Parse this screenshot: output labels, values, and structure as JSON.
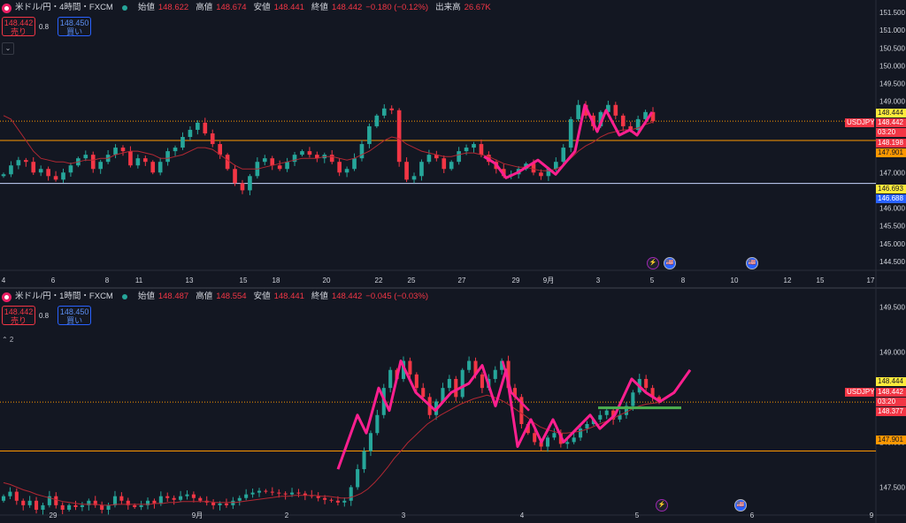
{
  "colors": {
    "background": "#131722",
    "up": "#26a69a",
    "down": "#f23645",
    "drawing": "#ff1f8f",
    "support_green": "#4caf50",
    "hline_orange": "#ff9800",
    "hline_blue": "#c8d7ff"
  },
  "chart_data": [
    {
      "type": "candlestick",
      "symbol_line": "米ドル/円・4時間・FXCM",
      "ohlc": {
        "open_label": "始値",
        "open": "148.622",
        "high_label": "高値",
        "high": "148.674",
        "low_label": "安値",
        "low": "148.441",
        "close_label": "終値",
        "close": "148.442",
        "change": "−0.180 (−0.12%)",
        "volume_label": "出来高",
        "volume": "26.67K"
      },
      "sell": {
        "price": "148.442",
        "label": "売り"
      },
      "buy": {
        "price": "148.450",
        "label": "買い"
      },
      "spread": "0.8",
      "y_ticks": [
        "151.500",
        "151.000",
        "150.500",
        "150.000",
        "149.500",
        "149.000",
        "147.500",
        "147.000",
        "146.500",
        "146.000",
        "145.500",
        "145.000",
        "144.500"
      ],
      "x_ticks": [
        "4",
        "6",
        "8",
        "11",
        "13",
        "15",
        "18",
        "20",
        "22",
        "25",
        "27",
        "29",
        "9月",
        "3",
        "5",
        "8",
        "10",
        "12",
        "15",
        "17"
      ],
      "ylim": [
        144.4,
        151.65
      ],
      "hlines": [
        148.444,
        147.901,
        146.693
      ],
      "price_tags": [
        {
          "text": "148.444",
          "kind": "yellow"
        },
        {
          "text": "USDJPY",
          "kind": "red-left"
        },
        {
          "text": "148.442",
          "kind": "red"
        },
        {
          "text": "03:20",
          "kind": "red"
        },
        {
          "text": "148.198",
          "kind": "red"
        },
        {
          "text": "147.901",
          "kind": "orange"
        },
        {
          "text": "146.693",
          "kind": "yellow"
        },
        {
          "text": "146.688",
          "kind": "blue"
        }
      ],
      "close_series": [
        146.95,
        147.2,
        147.35,
        147.3,
        147.0,
        147.1,
        146.9,
        146.8,
        147.0,
        147.2,
        147.4,
        147.5,
        147.1,
        147.3,
        147.5,
        147.7,
        147.6,
        147.2,
        147.4,
        147.3,
        147.0,
        147.3,
        147.6,
        147.7,
        148.0,
        148.2,
        148.4,
        148.1,
        147.8,
        147.5,
        147.1,
        146.7,
        146.5,
        146.9,
        147.3,
        147.4,
        147.2,
        147.1,
        147.3,
        147.5,
        147.6,
        147.5,
        147.4,
        147.5,
        147.3,
        147.0,
        147.1,
        147.4,
        147.8,
        148.3,
        148.6,
        148.8,
        148.75,
        147.3,
        146.8,
        146.9,
        147.3,
        147.5,
        147.4,
        147.1,
        147.3,
        147.6,
        147.7,
        147.8,
        147.5,
        147.3,
        147.1,
        146.9,
        146.95,
        147.1,
        147.25,
        147.0,
        146.9,
        147.1,
        147.3,
        147.7,
        148.5,
        148.9,
        148.6,
        148.3,
        148.7,
        148.9,
        148.6,
        148.3,
        148.2,
        148.5,
        148.7,
        148.442
      ],
      "ma_series": [
        148.6,
        148.5,
        148.2,
        147.9,
        147.6,
        147.4,
        147.35,
        147.3,
        147.3,
        147.25,
        147.3,
        147.35,
        147.35,
        147.4,
        147.4,
        147.5,
        147.55,
        147.6,
        147.6,
        147.55,
        147.5,
        147.4,
        147.4,
        147.45,
        147.5,
        147.6,
        147.7,
        147.7,
        147.65,
        147.5,
        147.35,
        147.2,
        147.1,
        147.1,
        147.1,
        147.15,
        147.2,
        147.25,
        147.3,
        147.35,
        147.4,
        147.4,
        147.4,
        147.45,
        147.45,
        147.4,
        147.35,
        147.4,
        147.5,
        147.6,
        147.75,
        147.9,
        148.0,
        147.95,
        147.8,
        147.7,
        147.6,
        147.55,
        147.5,
        147.45,
        147.45,
        147.5,
        147.55,
        147.55,
        147.5,
        147.45,
        147.35,
        147.25,
        147.2,
        147.15,
        147.15,
        147.1,
        147.05,
        147.05,
        147.1,
        147.2,
        147.4,
        147.6,
        147.75,
        147.85,
        148.0,
        148.1,
        148.15,
        148.2,
        148.2,
        148.25,
        148.35,
        148.42
      ]
    },
    {
      "type": "candlestick",
      "symbol_line": "米ドル/円・1時間・FXCM",
      "ohlc": {
        "open_label": "始値",
        "open": "148.487",
        "high_label": "高値",
        "high": "148.554",
        "low_label": "安値",
        "low": "148.441",
        "close_label": "終値",
        "close": "148.442",
        "change": "−0.045 (−0.03%)"
      },
      "sell": {
        "price": "148.442",
        "label": "売り"
      },
      "buy": {
        "price": "148.450",
        "label": "買い"
      },
      "spread": "0.8",
      "y_ticks": [
        "149.500",
        "149.000",
        "148.000",
        "147.500"
      ],
      "x_ticks": [
        "29",
        "9月",
        "2",
        "3",
        "4",
        "5",
        "6",
        "9"
      ],
      "ylim": [
        147.25,
        149.62
      ],
      "hlines": [
        148.444,
        147.901
      ],
      "price_tags": [
        {
          "text": "148.444",
          "kind": "yellow"
        },
        {
          "text": "USDJPY",
          "kind": "red-left"
        },
        {
          "text": "148.442",
          "kind": "red"
        },
        {
          "text": "03:20",
          "kind": "red"
        },
        {
          "text": "148.377",
          "kind": "red"
        },
        {
          "text": "147.901",
          "kind": "orange"
        }
      ],
      "close_series": [
        147.4,
        147.45,
        147.35,
        147.3,
        147.35,
        147.25,
        147.3,
        147.4,
        147.3,
        147.25,
        147.3,
        147.28,
        147.3,
        147.35,
        147.3,
        147.25,
        147.3,
        147.4,
        147.35,
        147.3,
        147.28,
        147.3,
        147.35,
        147.32,
        147.4,
        147.38,
        147.36,
        147.4,
        147.42,
        147.38,
        147.35,
        147.33,
        147.3,
        147.32,
        147.3,
        147.35,
        147.38,
        147.42,
        147.44,
        147.46,
        147.45,
        147.44,
        147.43,
        147.42,
        147.44,
        147.43,
        147.41,
        147.4,
        147.38,
        147.36,
        147.35,
        147.33,
        147.35,
        147.5,
        147.7,
        147.9,
        148.1,
        148.3,
        148.6,
        148.8,
        148.7,
        148.9,
        148.75,
        148.6,
        148.5,
        148.3,
        148.45,
        148.6,
        148.7,
        148.5,
        148.8,
        148.9,
        148.75,
        148.6,
        148.7,
        148.8,
        148.9,
        148.6,
        148.5,
        148.2,
        148.1,
        148.0,
        147.95,
        148.05,
        148.1,
        147.98,
        148.0,
        148.05,
        148.15,
        148.2,
        148.25,
        148.3,
        148.35,
        148.25,
        148.3,
        148.4,
        148.55,
        148.7,
        148.6,
        148.5,
        148.442
      ],
      "ma_series": [
        147.55,
        147.53,
        147.5,
        147.47,
        147.45,
        147.42,
        147.4,
        147.38,
        147.36,
        147.34,
        147.33,
        147.32,
        147.31,
        147.31,
        147.31,
        147.3,
        147.3,
        147.31,
        147.31,
        147.31,
        147.31,
        147.31,
        147.31,
        147.32,
        147.32,
        147.33,
        147.33,
        147.34,
        147.34,
        147.34,
        147.34,
        147.34,
        147.33,
        147.33,
        147.33,
        147.33,
        147.34,
        147.35,
        147.36,
        147.37,
        147.38,
        147.39,
        147.4,
        147.4,
        147.41,
        147.41,
        147.41,
        147.41,
        147.4,
        147.4,
        147.39,
        147.38,
        147.38,
        147.4,
        147.43,
        147.48,
        147.55,
        147.63,
        147.72,
        147.82,
        147.9,
        147.99,
        148.06,
        148.13,
        148.2,
        148.25,
        148.3,
        148.34,
        148.38,
        148.42,
        148.45,
        148.48,
        148.5,
        148.52,
        148.5,
        148.47,
        148.43,
        148.38,
        148.33,
        148.28,
        148.22,
        148.17,
        148.14,
        148.12,
        148.1,
        148.1,
        148.11,
        148.12,
        148.14,
        148.17,
        148.2,
        148.23,
        148.26,
        148.3,
        148.33,
        148.37,
        148.4,
        148.42,
        148.43,
        148.44
      ]
    }
  ],
  "events": {
    "bolt": "⚡",
    "flag": "🇺🇸"
  }
}
